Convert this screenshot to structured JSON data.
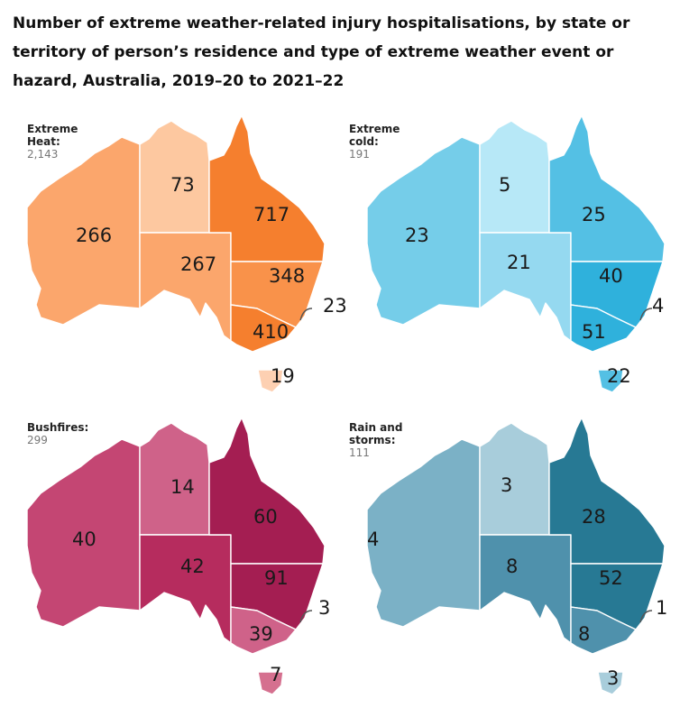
{
  "title": "Number of extreme weather-related injury hospitalisations, by state or territory of person’s residence and type of extreme weather event or hazard, Australia, 2019–20 to 2021–22",
  "panels": [
    {
      "category": "Extreme\nHeat:",
      "total": "2,143",
      "colors": {
        "WA": "#fba66c",
        "NT": "#fdc8a0",
        "SA": "#fba66c",
        "QLD": "#f57f2e",
        "NSW": "#f9924a",
        "VIC": "#f57f2e",
        "TAS": "#fdd0b2"
      },
      "values": {
        "WA": "266",
        "NT": "73",
        "SA": "267",
        "QLD": "717",
        "NSW": "348",
        "ACT": "23",
        "VIC": "410",
        "TAS": "19"
      }
    },
    {
      "category": "Extreme\ncold:",
      "total": "191",
      "colors": {
        "WA": "#75cde9",
        "NT": "#b7e8f7",
        "SA": "#95d9f0",
        "QLD": "#54c0e4",
        "NSW": "#2fb1dc",
        "VIC": "#2fb1dc",
        "TAS": "#54c0e4"
      },
      "values": {
        "WA": "23",
        "NT": "5",
        "SA": "21",
        "QLD": "25",
        "NSW": "40",
        "ACT": "4",
        "VIC": "51",
        "TAS": "22"
      }
    },
    {
      "category": "Bushfires:",
      "total": "299",
      "colors": {
        "WA": "#c44673",
        "NT": "#cf6289",
        "SA": "#b62c5e",
        "QLD": "#a41e52",
        "NSW": "#a41e52",
        "VIC": "#cf6289",
        "TAS": "#d5708f"
      },
      "values": {
        "WA": "40",
        "NT": "14",
        "SA": "42",
        "QLD": "60",
        "NSW": "91",
        "ACT": "3",
        "VIC": "39",
        "TAS": "7"
      }
    },
    {
      "category": "Rain and\nstorms:",
      "total": "111",
      "colors": {
        "WA": "#7bb1c6",
        "NT": "#a8cddb",
        "SA": "#4f91ac",
        "QLD": "#277994",
        "NSW": "#277994",
        "VIC": "#4f91ac",
        "TAS": "#a8cddb"
      },
      "values": {
        "WA": "4",
        "NT": "3",
        "SA": "8",
        "QLD": "28",
        "NSW": "52",
        "ACT": "1",
        "VIC": "8",
        "TAS": "3"
      }
    }
  ]
}
